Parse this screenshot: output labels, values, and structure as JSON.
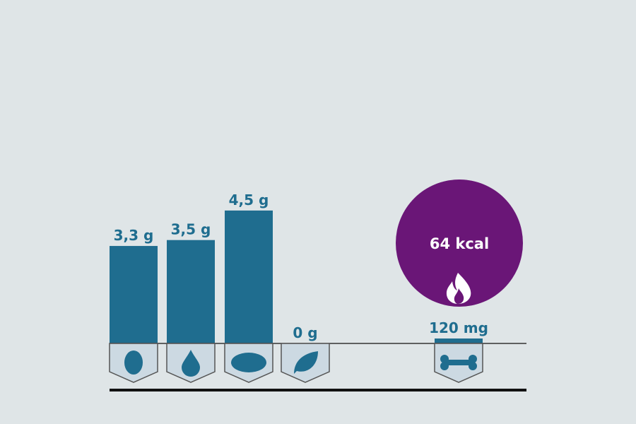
{
  "colors": {
    "bar": "#1f6d8f",
    "energy_circle": "#6a1677",
    "badge_fill": "#ccd9e2",
    "badge_stroke": "#555555",
    "background": "#dfe5e7"
  },
  "chart_data": {
    "type": "bar",
    "unit": "g",
    "categories": [
      "egg-icon",
      "water-drop-icon",
      "bread-icon",
      "leaf-icon"
    ],
    "values": [
      3.3,
      3.5,
      4.5,
      0
    ],
    "labels": [
      "3,3 g",
      "3,5 g",
      "4,5 g",
      "0 g"
    ],
    "extra": {
      "label": "120 mg",
      "value_mg": 120,
      "icon": "bone-icon"
    },
    "energy": {
      "label": "64 kcal",
      "value": 64,
      "icon": "flame-icon"
    }
  }
}
